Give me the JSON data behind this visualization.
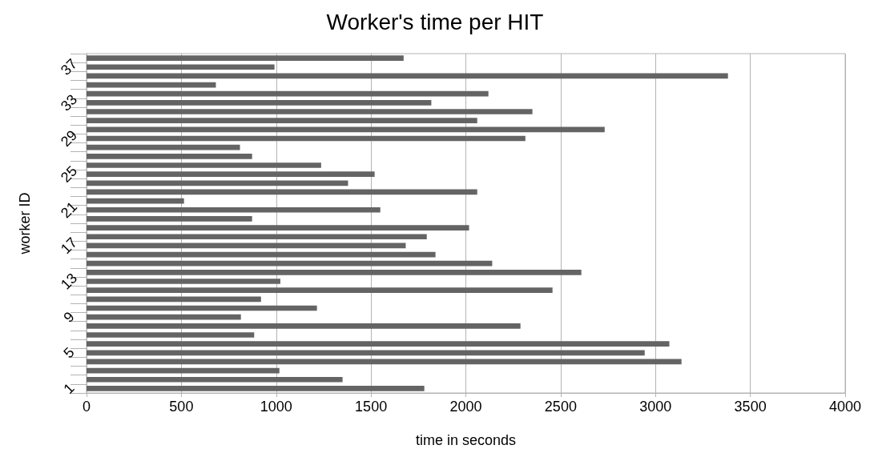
{
  "chart_data": {
    "type": "bar",
    "orientation": "horizontal",
    "title": "Worker's time per HIT",
    "xlabel": "time in seconds",
    "ylabel": "worker ID",
    "categories": [
      null,
      "37",
      null,
      null,
      null,
      "33",
      null,
      null,
      null,
      "29",
      null,
      null,
      null,
      "25",
      null,
      null,
      null,
      "21",
      null,
      null,
      null,
      "17",
      null,
      null,
      null,
      "13",
      null,
      null,
      null,
      "9",
      null,
      null,
      null,
      "5",
      null,
      null,
      null,
      "1"
    ],
    "values": [
      1672,
      991,
      3382,
      682,
      2119,
      1818,
      2351,
      2060,
      2732,
      2314,
      809,
      873,
      1237,
      1519,
      1379,
      2060,
      514,
      1549,
      873,
      2017,
      1794,
      1683,
      1840,
      2139,
      2609,
      1022,
      2457,
      920,
      1215,
      814,
      2288,
      884,
      3073,
      2943,
      3137,
      1017,
      1350,
      1781
    ],
    "color": "#646464",
    "xlim": [
      0,
      4000
    ],
    "xticks": [
      0,
      500,
      1000,
      1500,
      2000,
      2500,
      3000,
      3500,
      4000
    ],
    "grid": "x"
  }
}
